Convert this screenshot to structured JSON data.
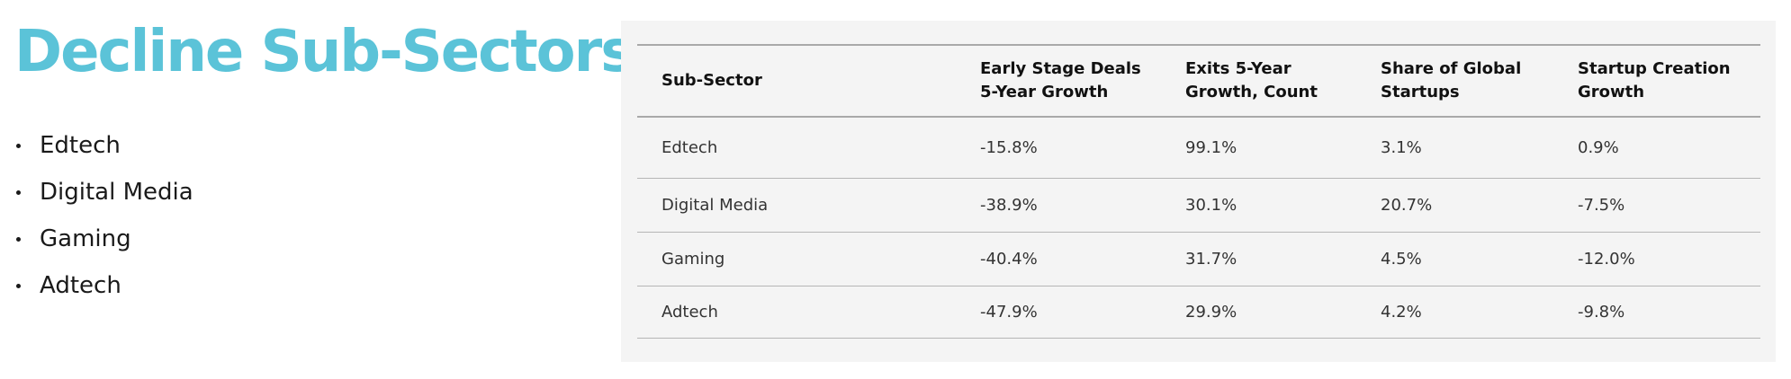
{
  "page": {
    "title": "Decline Sub-Sectors",
    "title_color": "#5bc3d8"
  },
  "bullets": [
    "Edtech",
    "Digital Media",
    "Gaming",
    "Adtech"
  ],
  "table": {
    "headers": [
      "Sub-Sector",
      "Early Stage Deals 5-Year Growth",
      "Exits 5-Year Growth, Count",
      "Share of Global Startups",
      "Startup Creation Growth"
    ],
    "rows": [
      [
        "Edtech",
        "-15.8%",
        "99.1%",
        "3.1%",
        "0.9%"
      ],
      [
        "Digital Media",
        "-38.9%",
        "30.1%",
        "20.7%",
        "-7.5%"
      ],
      [
        "Gaming",
        "-40.4%",
        "31.7%",
        "4.5%",
        "-12.0%"
      ],
      [
        "Adtech",
        "-47.9%",
        "29.9%",
        "4.2%",
        "-9.8%"
      ]
    ]
  }
}
